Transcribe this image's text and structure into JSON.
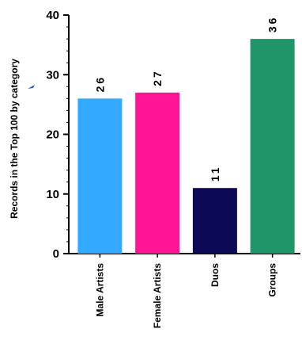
{
  "chart_data": {
    "type": "bar",
    "title": "",
    "xlabel": "",
    "ylabel": "Records in the Top 100 by category",
    "categories": [
      "Male Artists",
      "Female Artists",
      "Duos",
      "Groups"
    ],
    "values": [
      26,
      27,
      11,
      36
    ],
    "data_labels": [
      "26",
      "27",
      "11",
      "36"
    ],
    "bar_colors": [
      "#33aaff",
      "#ff1493",
      "#0d0a55",
      "#20956a"
    ],
    "ylim": [
      0,
      40
    ],
    "yticks": [
      0,
      10,
      20,
      30,
      40
    ],
    "grid": false,
    "legend": "none"
  }
}
